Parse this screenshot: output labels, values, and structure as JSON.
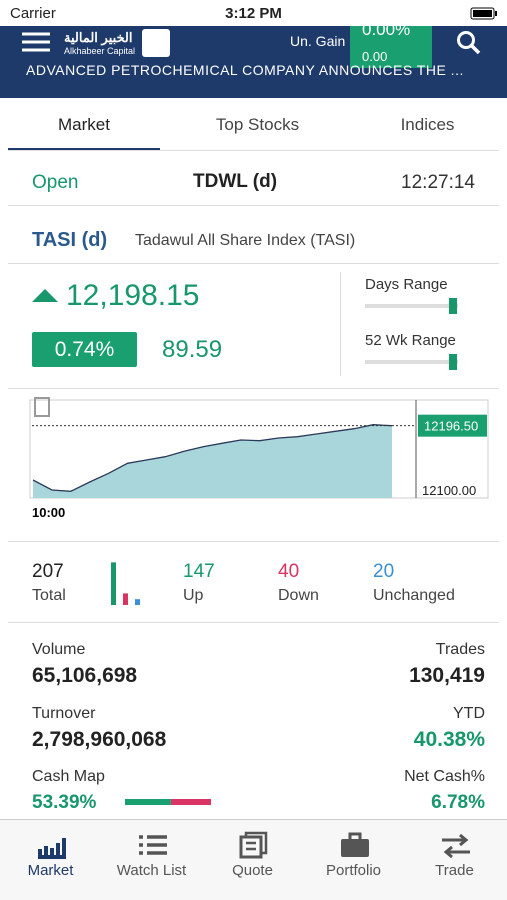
{
  "status_bar": {
    "carrier": "Carrier",
    "time": "3:12 PM"
  },
  "header": {
    "brand_ar": "الخبير المالية",
    "brand_en": "Alkhabeer Capital",
    "gain_label": "Un. Gain",
    "gain_pct": "0.00%",
    "gain_value": "0.00",
    "ticker": "ADVANCED PETROCHEMICAL COMPANY ANNOUNCES THE ..."
  },
  "tabs": [
    "Market",
    "Top Stocks",
    "Indices"
  ],
  "market_status": {
    "status": "Open",
    "exchange": "TDWL (d)",
    "time": "12:27:14"
  },
  "index": {
    "code": "TASI (d)",
    "name": "Tadawul All Share Index (TASI)",
    "value": "12,198.15",
    "change_pct": "0.74%",
    "change": "89.59",
    "days_range_label": "Days Range",
    "wk_range_label": "52 Wk Range"
  },
  "chart": {
    "start_time": "10:00",
    "ylim": [
      12088,
      12235
    ],
    "last": {
      "value": 12196.5,
      "label": "12196.50"
    },
    "base": {
      "value": 12100,
      "label": "12100.00"
    },
    "values": [
      12115,
      12100,
      12098,
      12112,
      12125,
      12140,
      12145,
      12150,
      12158,
      12165,
      12170,
      12175,
      12174,
      12178,
      12180,
      12184,
      12188,
      12192,
      12198,
      12196.5
    ]
  },
  "breadth": {
    "total": {
      "value": 207,
      "label": "Total"
    },
    "up": {
      "value": 147,
      "label": "Up"
    },
    "down": {
      "value": 40,
      "label": "Down"
    },
    "unchanged": {
      "value": 20,
      "label": "Unchanged"
    }
  },
  "stats": {
    "volume_label": "Volume",
    "volume": "65,106,698",
    "trades_label": "Trades",
    "trades": "130,419",
    "turnover_label": "Turnover",
    "turnover": "2,798,960,068",
    "ytd_label": "YTD",
    "ytd": "40.38%",
    "cash_map_label": "Cash Map",
    "cash_map": {
      "value": 53.39,
      "label": "53.39%"
    },
    "net_cash_label": "Net Cash%",
    "net_cash": "6.78%"
  },
  "nav": [
    "Market",
    "Watch List",
    "Quote",
    "Portfolio",
    "Trade"
  ]
}
